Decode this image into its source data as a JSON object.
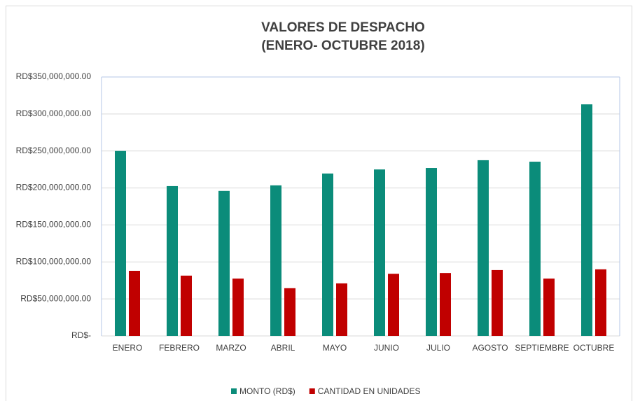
{
  "chart_data": {
    "type": "bar",
    "title": "VALORES DE DESPACHO",
    "subtitle": "(ENERO- OCTUBRE 2018)",
    "categories": [
      "ENERO",
      "FEBRERO",
      "MARZO",
      "ABRIL",
      "MAYO",
      "JUNIO",
      "JULIO",
      "AGOSTO",
      "SEPTIEMBRE",
      "OCTUBRE"
    ],
    "series": [
      {
        "name": "MONTO (RD$)",
        "color": "#0b8c7a",
        "values": [
          250000000,
          202500000,
          196000000,
          203500000,
          219500000,
          225000000,
          227000000,
          237500000,
          235500000,
          313000000
        ]
      },
      {
        "name": "CANTIDAD EN UNIDADES",
        "color": "#c00000",
        "values": [
          88000000,
          81500000,
          77500000,
          64500000,
          71000000,
          84000000,
          85000000,
          89000000,
          77500000,
          90000000
        ]
      }
    ],
    "ylim": [
      0,
      350000000
    ],
    "yticks": [
      {
        "value": 0,
        "label": "RD$-"
      },
      {
        "value": 50000000,
        "label": "RD$50,000,000.00"
      },
      {
        "value": 100000000,
        "label": "RD$100,000,000.00"
      },
      {
        "value": 150000000,
        "label": "RD$150,000,000.00"
      },
      {
        "value": 200000000,
        "label": "RD$200,000,000.00"
      },
      {
        "value": 250000000,
        "label": "RD$250,000,000.00"
      },
      {
        "value": 300000000,
        "label": "RD$300,000,000.00"
      },
      {
        "value": 350000000,
        "label": "RD$350,000,000.00"
      }
    ],
    "grid": true,
    "legend": "bottom"
  }
}
